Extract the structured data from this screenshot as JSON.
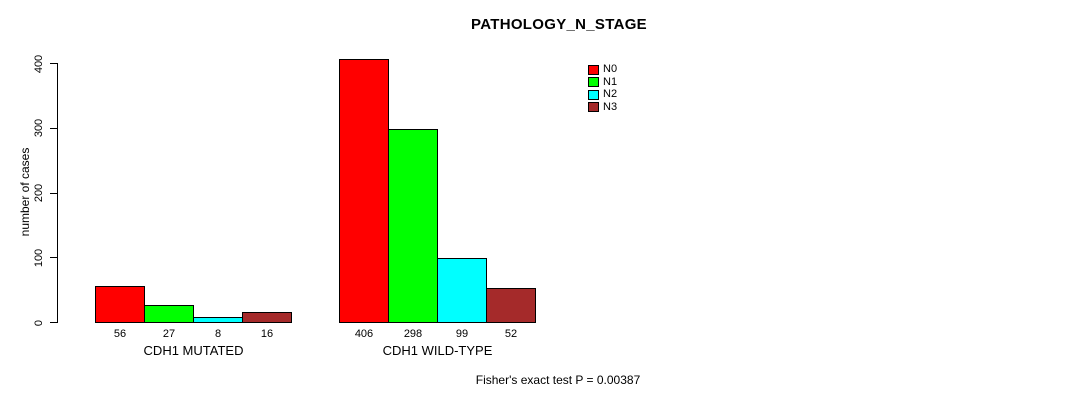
{
  "chart_data": {
    "type": "bar",
    "title": "PATHOLOGY_N_STAGE",
    "ylabel": "number of cases",
    "xlabel": "",
    "ylim": [
      0,
      400
    ],
    "yticks": [
      0,
      100,
      200,
      300,
      400
    ],
    "grid": false,
    "legend_position": "top-right",
    "categories": [
      "CDH1 MUTATED",
      "CDH1 WILD-TYPE"
    ],
    "series": [
      {
        "name": "N0",
        "color": "#ff0000",
        "values": [
          56,
          406
        ]
      },
      {
        "name": "N1",
        "color": "#00ff00",
        "values": [
          27,
          298
        ]
      },
      {
        "name": "N2",
        "color": "#00ffff",
        "values": [
          8,
          99
        ]
      },
      {
        "name": "N3",
        "color": "#a52a2a",
        "values": [
          16,
          52
        ]
      }
    ],
    "value_labels_shown": true,
    "annotation": "Fisher's exact test P = 0.00387",
    "axis_color": "#000000",
    "bar_border_color": "#000000",
    "background_color": "#ffffff"
  }
}
